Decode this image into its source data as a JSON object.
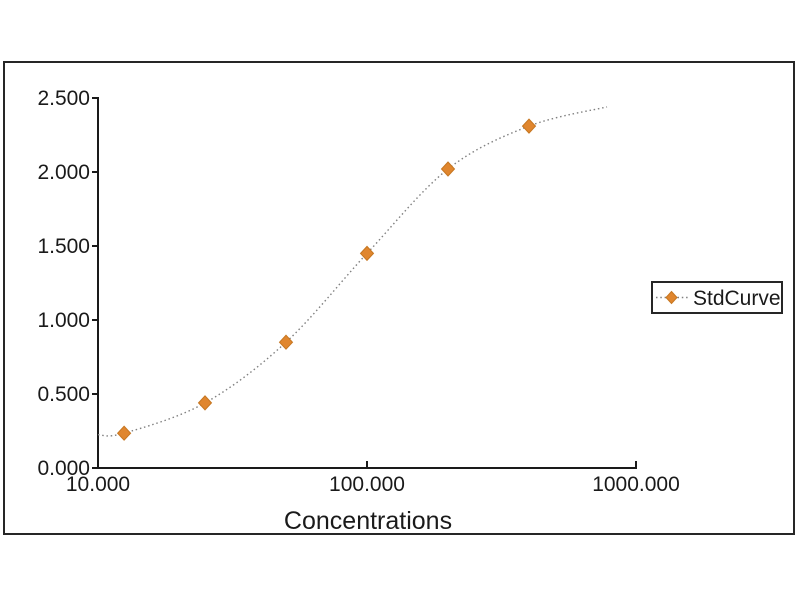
{
  "chart_data": {
    "type": "scatter",
    "title": "",
    "xlabel": "Concentrations",
    "ylabel": "",
    "x_scale": "log10",
    "x_range": [
      10,
      1000
    ],
    "y_range": [
      0,
      2.5
    ],
    "grid": "off",
    "x_tick_labels": [
      "10.000",
      "100.000",
      "1000.000"
    ],
    "x_tick_values": [
      10,
      100,
      1000
    ],
    "y_tick_labels": [
      "0.000",
      "0.500",
      "1.000",
      "1.500",
      "2.000",
      "2.500"
    ],
    "y_tick_values": [
      0,
      0.5,
      1.0,
      1.5,
      2.0,
      2.5
    ],
    "series": [
      {
        "name": "StdCurve",
        "marker": "diamond",
        "line_style": "dotted",
        "points": [
          {
            "x": 12.5,
            "y": 0.235
          },
          {
            "x": 25,
            "y": 0.44
          },
          {
            "x": 50,
            "y": 0.85
          },
          {
            "x": 100,
            "y": 1.45
          },
          {
            "x": 200,
            "y": 2.02
          },
          {
            "x": 400,
            "y": 2.31
          }
        ],
        "fit_curve_points": [
          {
            "x": 10,
            "y": 0.225
          },
          {
            "x": 12.5,
            "y": 0.235
          },
          {
            "x": 25,
            "y": 0.44
          },
          {
            "x": 50,
            "y": 0.85
          },
          {
            "x": 100,
            "y": 1.45
          },
          {
            "x": 200,
            "y": 2.02
          },
          {
            "x": 400,
            "y": 2.31
          },
          {
            "x": 780,
            "y": 2.44
          }
        ]
      }
    ],
    "legend": {
      "position": "right",
      "entries": [
        "StdCurve"
      ]
    }
  },
  "colors": {
    "marker": "#e0862e",
    "marker_edge": "#c67620",
    "curve": "#808080",
    "axis": "#1a1a1a",
    "text": "#1a1a1a",
    "border": "#262626",
    "background": "#ffffff"
  }
}
